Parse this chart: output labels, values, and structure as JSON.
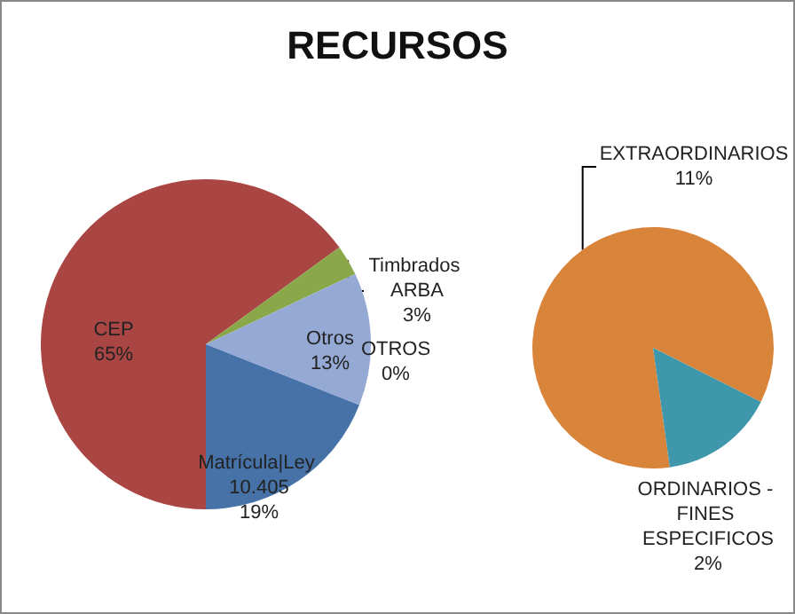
{
  "chart_data": [
    {
      "type": "pie",
      "title": "RECURSOS",
      "categories": [
        "CEP",
        "Timbrados ARBA",
        "OTROS",
        "Otros",
        "Matrícula|Ley 10.405"
      ],
      "values": [
        65,
        3,
        0,
        13,
        19
      ],
      "colors": [
        "#a94543",
        "#8aa84a",
        "#7b5fa0",
        "#94a9d4",
        "#4672a8"
      ],
      "value_labels": [
        "65%",
        "3%",
        "0%",
        "13%",
        "19%"
      ]
    },
    {
      "type": "pie",
      "categories": [
        "EXTRAORDINARIOS",
        "ORDINARIOS - FINES ESPECIFICOS"
      ],
      "values": [
        11,
        2
      ],
      "colors": [
        "#d9843b",
        "#3f97ac"
      ],
      "value_labels": [
        "11%",
        "2%"
      ]
    }
  ]
}
